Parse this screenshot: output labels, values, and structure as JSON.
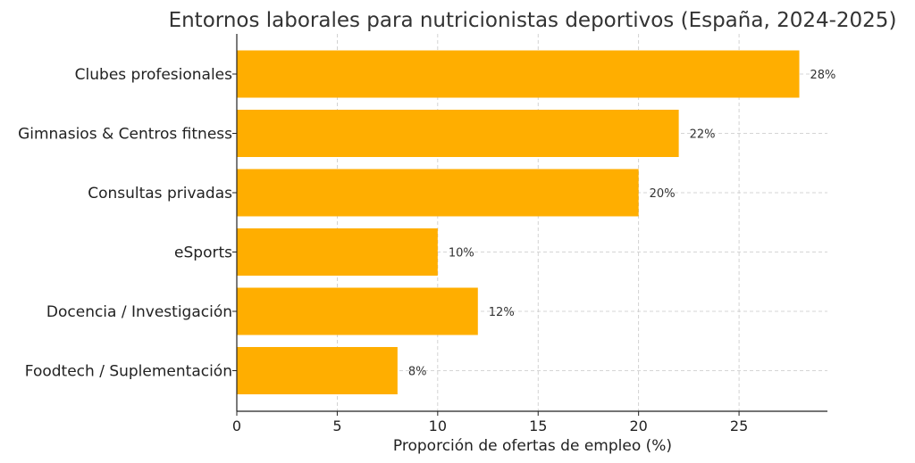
{
  "chart_data": {
    "type": "bar",
    "orientation": "horizontal",
    "title": "Entornos laborales para nutricionistas deportivos (España, 2024-2025)",
    "xlabel": "Proporción de ofertas de empleo (%)",
    "ylabel": "",
    "categories": [
      "Clubes profesionales",
      "Gimnasios & Centros fitness",
      "Consultas privadas",
      "eSports",
      "Docencia / Investigación",
      "Foodtech / Suplementación"
    ],
    "values": [
      28,
      22,
      20,
      10,
      12,
      8
    ],
    "value_labels": [
      "28%",
      "22%",
      "20%",
      "10%",
      "12%",
      "8%"
    ],
    "xlim": [
      0,
      29.4
    ],
    "xticks": [
      0,
      5,
      10,
      15,
      20,
      25
    ],
    "xtick_labels": [
      "0",
      "5",
      "10",
      "15",
      "20",
      "25"
    ],
    "grid": true,
    "bar_color": "#FFAE00"
  }
}
